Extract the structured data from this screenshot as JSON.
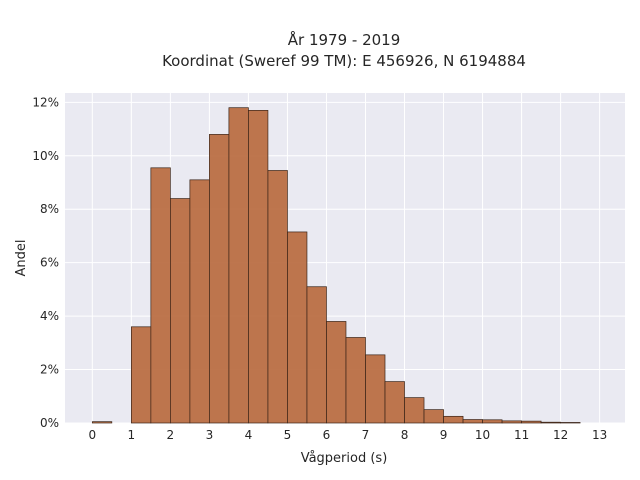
{
  "chart_data": {
    "type": "bar",
    "title_lines": [
      "År 1979 - 2019",
      "Koordinat (Sweref 99 TM): E 456926, N 6194884"
    ],
    "xlabel": "Vågperiod (s)",
    "ylabel": "Andel",
    "bin_width": 0.5,
    "bins": [
      {
        "x": 0.0,
        "y": 0.0005
      },
      {
        "x": 0.5,
        "y": 0.0
      },
      {
        "x": 1.0,
        "y": 0.036
      },
      {
        "x": 1.5,
        "y": 0.0955
      },
      {
        "x": 2.0,
        "y": 0.084
      },
      {
        "x": 2.5,
        "y": 0.091
      },
      {
        "x": 3.0,
        "y": 0.108
      },
      {
        "x": 3.5,
        "y": 0.118
      },
      {
        "x": 4.0,
        "y": 0.117
      },
      {
        "x": 4.5,
        "y": 0.0945
      },
      {
        "x": 5.0,
        "y": 0.0715
      },
      {
        "x": 5.5,
        "y": 0.051
      },
      {
        "x": 6.0,
        "y": 0.038
      },
      {
        "x": 6.5,
        "y": 0.032
      },
      {
        "x": 7.0,
        "y": 0.0255
      },
      {
        "x": 7.5,
        "y": 0.0155
      },
      {
        "x": 8.0,
        "y": 0.0095
      },
      {
        "x": 8.5,
        "y": 0.005
      },
      {
        "x": 9.0,
        "y": 0.0025
      },
      {
        "x": 9.5,
        "y": 0.0013
      },
      {
        "x": 10.0,
        "y": 0.0012
      },
      {
        "x": 10.5,
        "y": 0.0008
      },
      {
        "x": 11.0,
        "y": 0.0007
      },
      {
        "x": 11.5,
        "y": 0.0003
      },
      {
        "x": 12.0,
        "y": 0.0002
      }
    ],
    "x_ticks": [
      0,
      1,
      2,
      3,
      4,
      5,
      6,
      7,
      8,
      9,
      10,
      11,
      12,
      13
    ],
    "x_tick_labels": [
      "0",
      "1",
      "2",
      "3",
      "4",
      "5",
      "6",
      "7",
      "8",
      "9",
      "10",
      "11",
      "12",
      "13"
    ],
    "y_ticks": [
      0,
      0.02,
      0.04,
      0.06,
      0.08,
      0.1,
      0.12
    ],
    "y_tick_labels": [
      "0%",
      "2%",
      "4%",
      "6%",
      "8%",
      "10%",
      "12%"
    ],
    "xlim": [
      -0.7,
      13.65
    ],
    "ylim": [
      0,
      0.1235
    ],
    "grid": true,
    "colors": {
      "bar_fill": "#b86a3f",
      "bar_stroke": "#3a2418",
      "plot_background": "#eaeaf2",
      "grid": "#ffffff"
    }
  }
}
